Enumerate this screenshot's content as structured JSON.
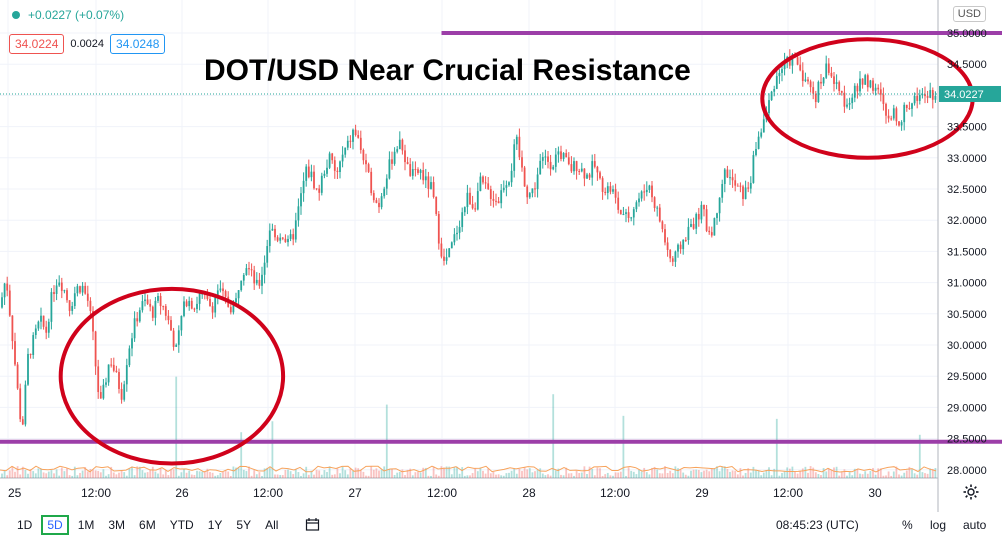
{
  "header": {
    "change_text": "+0.0227 (+0.07%)",
    "bid": "34.0224",
    "spread": "0.0024",
    "ask": "34.0248",
    "currency": "USD"
  },
  "headline": "DOT/USD Near Crucial Resistance",
  "last_price_label": "34.0227",
  "timeframes": [
    "1D",
    "5D",
    "1M",
    "3M",
    "6M",
    "YTD",
    "1Y",
    "5Y",
    "All"
  ],
  "active_timeframe": "5D",
  "footer": {
    "time": "08:45:23 (UTC)",
    "percent": "%",
    "log": "log",
    "auto": "auto"
  },
  "colors": {
    "up": "#26a69a",
    "down": "#ef5350",
    "resistance_line": "#9c3ea8",
    "annotation_ellipse": "#d0021b",
    "price_label_bg": "#26a69a",
    "active_timeframe_border": "#1fa84a"
  },
  "chart_data": {
    "type": "candlestick",
    "x_tick_labels": [
      "25",
      "12:00",
      "26",
      "12:00",
      "27",
      "12:00",
      "28",
      "12:00",
      "29",
      "12:00",
      "30"
    ],
    "y_tick_labels": [
      "35.0000",
      "34.5000",
      "34.0000",
      "33.5000",
      "33.0000",
      "32.5000",
      "32.0000",
      "31.5000",
      "31.0000",
      "30.5000",
      "30.0000",
      "29.5000",
      "29.0000",
      "28.5000",
      "28.0000"
    ],
    "ylim": [
      27.85,
      35.2
    ],
    "last_price": 34.0227,
    "horizontal_lines": [
      {
        "label": "resistance",
        "value": 35.0,
        "x_start": "27 12:00",
        "x_end": "30 12:00"
      },
      {
        "label": "support",
        "value": 28.45,
        "x_start": "25",
        "x_end": "30 12:00"
      }
    ],
    "annotations": [
      {
        "shape": "ellipse",
        "x_range": [
          "25 12:00",
          "26 12:00"
        ],
        "y_range": [
          28.1,
          30.9
        ]
      },
      {
        "shape": "ellipse",
        "x_range": [
          "29 12:00",
          "30 12:00"
        ],
        "y_range": [
          33.0,
          34.9
        ]
      }
    ],
    "path_points": [
      [
        0,
        30.6
      ],
      [
        6,
        31.1
      ],
      [
        12,
        30.2
      ],
      [
        18,
        29.2
      ],
      [
        22,
        28.6
      ],
      [
        28,
        29.8
      ],
      [
        34,
        30.1
      ],
      [
        40,
        30.4
      ],
      [
        46,
        30.2
      ],
      [
        52,
        30.8
      ],
      [
        58,
        31.1
      ],
      [
        64,
        30.9
      ],
      [
        70,
        30.6
      ],
      [
        76,
        30.9
      ],
      [
        82,
        30.95
      ],
      [
        88,
        30.7
      ],
      [
        92,
        30.3
      ],
      [
        96,
        29.6
      ],
      [
        100,
        29.0
      ],
      [
        104,
        29.3
      ],
      [
        110,
        29.8
      ],
      [
        116,
        29.5
      ],
      [
        122,
        29.2
      ],
      [
        128,
        29.9
      ],
      [
        134,
        30.3
      ],
      [
        140,
        30.6
      ],
      [
        146,
        30.7
      ],
      [
        152,
        30.5
      ],
      [
        158,
        30.7
      ],
      [
        164,
        30.6
      ],
      [
        170,
        30.3
      ],
      [
        176,
        29.9
      ],
      [
        182,
        30.5
      ],
      [
        188,
        30.8
      ],
      [
        194,
        30.6
      ],
      [
        200,
        30.8
      ],
      [
        206,
        30.7
      ],
      [
        212,
        30.6
      ],
      [
        218,
        30.9
      ],
      [
        224,
        30.75
      ],
      [
        230,
        30.6
      ],
      [
        236,
        30.7
      ],
      [
        240,
        31.1
      ],
      [
        246,
        31.3
      ],
      [
        252,
        31.1
      ],
      [
        258,
        30.9
      ],
      [
        264,
        31.3
      ],
      [
        270,
        31.9
      ],
      [
        276,
        31.7
      ],
      [
        282,
        31.8
      ],
      [
        288,
        31.6
      ],
      [
        294,
        31.8
      ],
      [
        300,
        32.3
      ],
      [
        306,
        32.8
      ],
      [
        312,
        32.7
      ],
      [
        318,
        32.4
      ],
      [
        324,
        32.8
      ],
      [
        330,
        33.0
      ],
      [
        336,
        32.7
      ],
      [
        342,
        33.0
      ],
      [
        348,
        33.2
      ],
      [
        354,
        33.45
      ],
      [
        360,
        33.2
      ],
      [
        366,
        32.8
      ],
      [
        372,
        32.5
      ],
      [
        378,
        32.2
      ],
      [
        384,
        32.6
      ],
      [
        390,
        32.9
      ],
      [
        396,
        33.2
      ],
      [
        402,
        33.2
      ],
      [
        408,
        32.8
      ],
      [
        414,
        32.7
      ],
      [
        420,
        32.8
      ],
      [
        426,
        32.6
      ],
      [
        432,
        32.5
      ],
      [
        438,
        31.8
      ],
      [
        444,
        31.3
      ],
      [
        450,
        31.5
      ],
      [
        456,
        31.8
      ],
      [
        462,
        32.1
      ],
      [
        468,
        32.4
      ],
      [
        474,
        32.2
      ],
      [
        480,
        32.6
      ],
      [
        486,
        32.5
      ],
      [
        492,
        32.4
      ],
      [
        498,
        32.3
      ],
      [
        504,
        32.6
      ],
      [
        510,
        32.7
      ],
      [
        516,
        33.3
      ],
      [
        522,
        32.8
      ],
      [
        528,
        32.4
      ],
      [
        534,
        32.5
      ],
      [
        540,
        32.9
      ],
      [
        546,
        33.0
      ],
      [
        552,
        32.9
      ],
      [
        558,
        33.1
      ],
      [
        564,
        33.0
      ],
      [
        570,
        32.8
      ],
      [
        576,
        32.9
      ],
      [
        582,
        32.8
      ],
      [
        588,
        32.7
      ],
      [
        594,
        32.9
      ],
      [
        600,
        32.6
      ],
      [
        606,
        32.5
      ],
      [
        612,
        32.5
      ],
      [
        618,
        32.2
      ],
      [
        624,
        32.0
      ],
      [
        630,
        32.1
      ],
      [
        636,
        32.3
      ],
      [
        642,
        32.4
      ],
      [
        648,
        32.6
      ],
      [
        654,
        32.3
      ],
      [
        660,
        32.0
      ],
      [
        666,
        31.6
      ],
      [
        672,
        31.3
      ],
      [
        678,
        31.5
      ],
      [
        684,
        31.7
      ],
      [
        690,
        31.9
      ],
      [
        696,
        32.0
      ],
      [
        702,
        32.2
      ],
      [
        708,
        31.8
      ],
      [
        714,
        31.9
      ],
      [
        720,
        32.5
      ],
      [
        726,
        32.8
      ],
      [
        732,
        32.6
      ],
      [
        738,
        32.5
      ],
      [
        744,
        32.4
      ],
      [
        750,
        32.6
      ],
      [
        756,
        33.2
      ],
      [
        762,
        33.5
      ],
      [
        768,
        33.8
      ],
      [
        774,
        34.2
      ],
      [
        780,
        34.4
      ],
      [
        786,
        34.5
      ],
      [
        792,
        34.6
      ],
      [
        798,
        34.5
      ],
      [
        804,
        34.3
      ],
      [
        810,
        34.1
      ],
      [
        816,
        34.0
      ],
      [
        822,
        34.3
      ],
      [
        828,
        34.5
      ],
      [
        834,
        34.2
      ],
      [
        840,
        34.0
      ],
      [
        846,
        33.9
      ],
      [
        852,
        34.0
      ],
      [
        858,
        34.1
      ],
      [
        864,
        34.3
      ],
      [
        870,
        34.2
      ],
      [
        876,
        34.1
      ],
      [
        882,
        33.9
      ],
      [
        888,
        33.55
      ],
      [
        894,
        33.7
      ],
      [
        900,
        33.6
      ],
      [
        906,
        33.8
      ],
      [
        912,
        33.9
      ],
      [
        918,
        34.0
      ],
      [
        924,
        34.1
      ],
      [
        930,
        34.05
      ],
      [
        936,
        34.02
      ]
    ]
  }
}
